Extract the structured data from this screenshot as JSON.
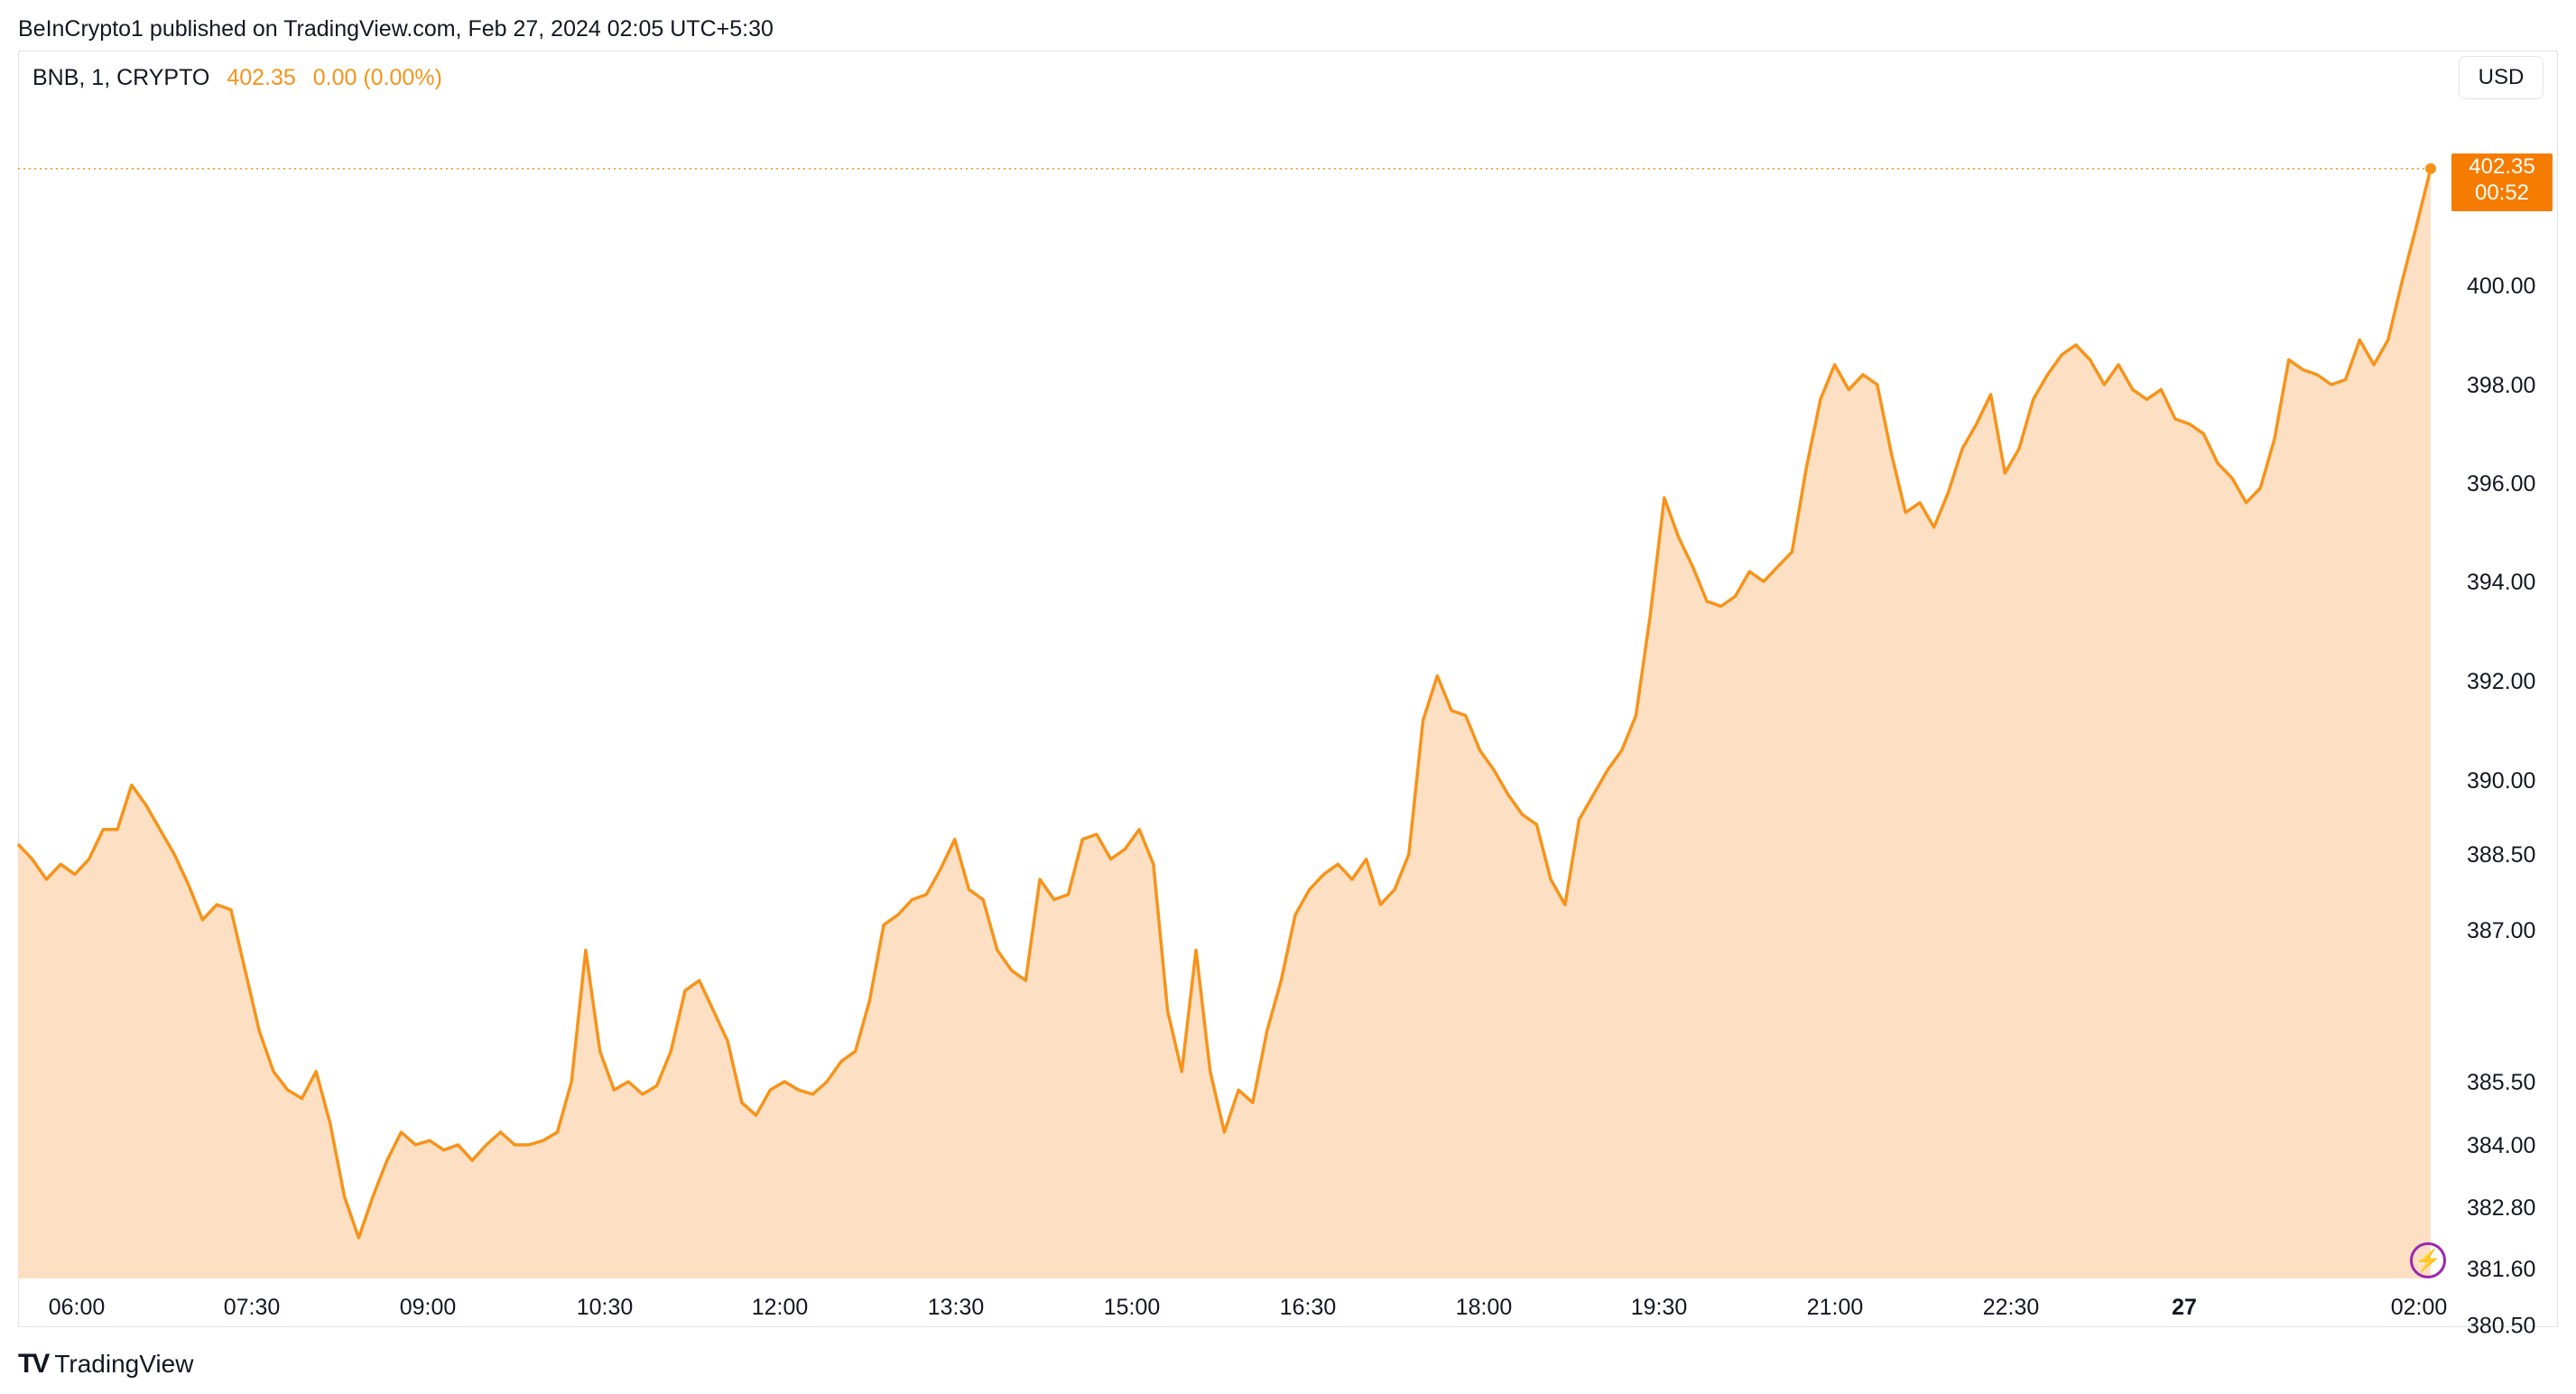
{
  "header": {
    "published_text": "BeInCrypto1 published on TradingView.com, Feb 27, 2024 02:05 UTC+5:30"
  },
  "legend": {
    "symbol": "BNB, 1, CRYPTO",
    "price": "402.35",
    "change": "0.00 (0.00%)"
  },
  "currency_button": "USD",
  "price_tag": {
    "price": "402.35",
    "countdown": "00:52"
  },
  "footer": {
    "logo_text": "TradingView"
  },
  "icons": {
    "lightning": "lightning-icon",
    "logo": "tradingview-logo-icon"
  },
  "colors": {
    "line": "#f7931a",
    "fill": "#fde0c3",
    "tag": "#f57c00",
    "lightning": "#9c27b0"
  },
  "chart_data": {
    "type": "area",
    "x_tick_labels": [
      "06:00",
      "07:30",
      "09:00",
      "10:30",
      "12:00",
      "13:30",
      "15:00",
      "16:30",
      "18:00",
      "19:30",
      "21:00",
      "22:30",
      "27",
      "02:00"
    ],
    "bold_x_tick": "27",
    "y_tick_labels": [
      "400.00",
      "398.00",
      "396.00",
      "394.00",
      "392.00",
      "390.00",
      "388.50",
      "387.00",
      "385.50",
      "384.00",
      "382.80",
      "381.60",
      "380.50"
    ],
    "ylim": [
      380.5,
      402.35
    ],
    "last_price": 402.35,
    "series": [
      {
        "values": [
          388.7,
          388.4,
          388.0,
          388.3,
          388.1,
          388.4,
          389.0,
          389.0,
          389.9,
          389.5,
          389.0,
          388.5,
          387.9,
          387.2,
          387.5,
          387.4,
          386.6,
          386.0,
          385.6,
          385.3,
          385.1,
          385.6,
          384.5,
          383.0,
          382.2,
          383.0,
          383.7,
          384.3,
          384.0,
          384.1,
          383.9,
          384.0,
          383.7,
          384.0,
          384.3,
          384.0,
          384.0,
          384.1,
          384.3,
          385.5,
          386.8,
          385.8,
          385.3,
          385.5,
          385.2,
          385.4,
          385.8,
          386.4,
          386.5,
          386.2,
          385.9,
          385.0,
          384.7,
          385.3,
          385.5,
          385.3,
          385.2,
          385.5,
          385.7,
          385.8,
          386.3,
          387.1,
          387.3,
          387.6,
          387.7,
          388.2,
          388.8,
          387.8,
          387.6,
          386.8,
          386.6,
          386.5,
          388.0,
          387.6,
          387.7,
          388.8,
          388.9,
          388.4,
          388.6,
          389.0,
          388.3,
          386.2,
          385.6,
          386.8,
          385.6,
          384.3,
          385.3,
          385.0,
          386.0,
          386.5,
          387.3,
          387.8,
          388.1,
          388.3,
          388.0,
          388.4,
          387.5,
          387.8,
          388.5,
          391.2,
          392.1,
          391.4,
          391.3,
          390.6,
          390.2,
          389.7,
          389.3,
          389.1,
          388.0,
          387.5,
          389.2,
          389.7,
          390.2,
          390.6,
          391.3,
          393.3,
          395.7,
          394.9,
          394.3,
          393.6,
          393.5,
          393.7,
          394.2,
          394.0,
          394.3,
          394.6,
          396.3,
          397.7,
          398.4,
          397.9,
          398.2,
          398.0,
          396.6,
          395.4,
          395.6,
          395.1,
          395.8,
          396.7,
          397.2,
          397.8,
          396.2,
          396.7,
          397.7,
          398.2,
          398.6,
          398.8,
          398.5,
          398.0,
          398.4,
          397.9,
          397.7,
          397.9,
          397.3,
          397.2,
          397.0,
          396.4,
          396.1,
          395.6,
          395.9,
          396.9,
          398.5,
          398.3,
          398.2,
          398.0,
          398.1,
          398.9,
          398.4,
          398.9,
          400.1,
          401.2,
          402.35
        ]
      }
    ]
  }
}
